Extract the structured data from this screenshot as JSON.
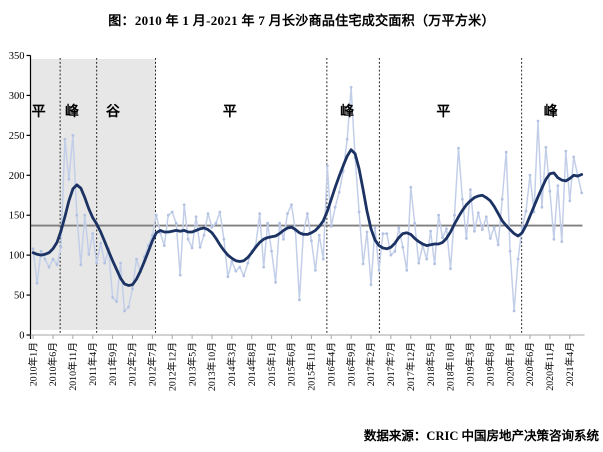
{
  "title": "图：2010 年 1 月-2021 年 7 月长沙商品住宅成交面积（万平方米）",
  "source": "数据来源：CRIC 中国房地产决策咨询系统",
  "chart_data": {
    "type": "line",
    "title": "图：2010年1月-2021年7月长沙商品住宅成交面积（万平方米）",
    "xlabel": "",
    "ylabel": "",
    "ylim": [
      0,
      350
    ],
    "y_ticks": [
      0,
      50,
      100,
      150,
      200,
      250,
      300,
      350
    ],
    "x_start": "2010年1月",
    "x_end": "2021年7月",
    "x_tick_interval_months": 5,
    "x_tick_labels": [
      "2010年1月",
      "2010年6月",
      "2010年11月",
      "2011年4月",
      "2011年9月",
      "2012年2月",
      "2012年7月",
      "2012年12月",
      "2013年5月",
      "2013年10月",
      "2014年3月",
      "2014年8月",
      "2015年1月",
      "2015年6月",
      "2015年11月",
      "2016年4月",
      "2016年9月",
      "2017年2月",
      "2017年7月",
      "2017年12月",
      "2018年5月",
      "2018年10月",
      "2019年3月",
      "2019年8月",
      "2020年1月",
      "2020年6月",
      "2020年11月",
      "2021年4月"
    ],
    "grid": false,
    "legend": "none",
    "mean_line_value": 137,
    "series": [
      {
        "name": "monthly-sales-area",
        "color": "#c3cfe9",
        "width": 1.5,
        "markers": true,
        "values": [
          108,
          65,
          105,
          95,
          85,
          95,
          88,
          110,
          245,
          195,
          250,
          150,
          88,
          150,
          101,
          127,
          90,
          115,
          90,
          108,
          47,
          42,
          90,
          30,
          35,
          58,
          95,
          79,
          98,
          112,
          125,
          150,
          128,
          112,
          150,
          154,
          140,
          75,
          163,
          120,
          109,
          148,
          110,
          125,
          152,
          135,
          140,
          154,
          120,
          73,
          92,
          80,
          85,
          74,
          90,
          105,
          112,
          152,
          85,
          140,
          105,
          66,
          140,
          120,
          152,
          163,
          130,
          44,
          128,
          152,
          118,
          81,
          125,
          95,
          212,
          136,
          160,
          179,
          205,
          245,
          310,
          222,
          154,
          89,
          129,
          63,
          134,
          81,
          127,
          127,
          100,
          105,
          134,
          110,
          81,
          185,
          140,
          90,
          112,
          95,
          130,
          89,
          150,
          122,
          133,
          83,
          150,
          234,
          170,
          121,
          182,
          130,
          153,
          132,
          148,
          121,
          135,
          113,
          170,
          229,
          105,
          30,
          95,
          135,
          155,
          200,
          154,
          268,
          160,
          235,
          180,
          120,
          187,
          117,
          230,
          168,
          223,
          200,
          178
        ]
      },
      {
        "name": "trend-cycle",
        "color": "#1b3263",
        "width": 2.8,
        "markers": false,
        "values": [
          103,
          101,
          100,
          101,
          103,
          108,
          116,
          130,
          148,
          168,
          183,
          188,
          184,
          172,
          158,
          147,
          139,
          129,
          117,
          105,
          93,
          82,
          71,
          64,
          62,
          63,
          70,
          80,
          92,
          105,
          118,
          128,
          131,
          129,
          129,
          130,
          131,
          130,
          131,
          129,
          129,
          131,
          133,
          134,
          132,
          128,
          121,
          113,
          106,
          100,
          96,
          93,
          92,
          93,
          97,
          103,
          110,
          116,
          120,
          122,
          123,
          124,
          127,
          131,
          134,
          135,
          132,
          128,
          126,
          126,
          128,
          131,
          136,
          143,
          155,
          170,
          185,
          199,
          212,
          224,
          232,
          227,
          208,
          182,
          155,
          133,
          119,
          112,
          109,
          108,
          110,
          115,
          122,
          127,
          128,
          126,
          121,
          117,
          114,
          112,
          113,
          114,
          114,
          116,
          121,
          129,
          139,
          148,
          156,
          163,
          168,
          172,
          174,
          175,
          172,
          168,
          161,
          152,
          143,
          137,
          132,
          127,
          124,
          128,
          137,
          149,
          161,
          173,
          184,
          195,
          202,
          203,
          197,
          194,
          193,
          196,
          200,
          199,
          201
        ]
      }
    ],
    "phase_boundaries_month_index": [
      6.8,
      16.0,
      30.8,
      73.9,
      87.1,
      122.9
    ],
    "phases": [
      {
        "label": "平",
        "label_month_index": 1.4
      },
      {
        "label": "峰",
        "label_month_index": 9.8
      },
      {
        "label": "谷",
        "label_month_index": 20.1
      },
      {
        "label": "平",
        "label_month_index": 49.5
      },
      {
        "label": "峰",
        "label_month_index": 79.0
      },
      {
        "label": "平",
        "label_month_index": 103.2
      },
      {
        "label": "峰",
        "label_month_index": 130.2
      }
    ],
    "shaded_region_month_index": [
      0,
      30.8
    ],
    "colors": {
      "monthly_line": "#c3cfe9",
      "monthly_marker": "#b3c2e2",
      "trend_line": "#1b3263",
      "mean_line": "#7f7f7f",
      "shaded_band": "#e7e7e7",
      "phase_divider": "#000000",
      "axis": "#000000",
      "text": "#000000"
    }
  }
}
